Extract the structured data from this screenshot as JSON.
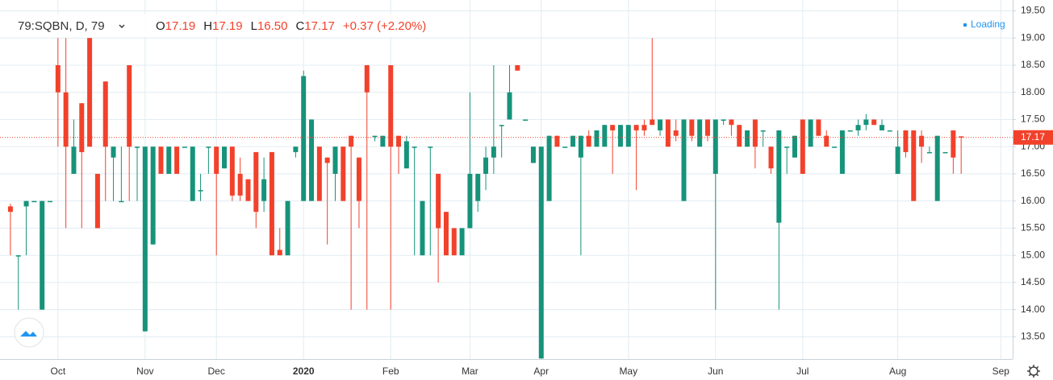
{
  "chart_data": {
    "type": "candlestick",
    "header": {
      "symbol": "79:SQBN, D, 79",
      "fields": [
        {
          "label": "O",
          "value": "17.19"
        },
        {
          "label": "H",
          "value": "17.19"
        },
        {
          "label": "L",
          "value": "16.50"
        },
        {
          "label": "C",
          "value": "17.17"
        }
      ],
      "change": "+0.37 (+2.20%)"
    },
    "status": "Loading",
    "price_label": "17.17",
    "up_color": "#16937a",
    "down_color": "#f2412b",
    "grid": true,
    "ylim": [
      13.09,
      19.7
    ],
    "yticks": [
      {
        "value": 13.5,
        "label": "13.50"
      },
      {
        "value": 14,
        "label": "14.00"
      },
      {
        "value": 14.5,
        "label": "14.50"
      },
      {
        "value": 15,
        "label": "15.00"
      },
      {
        "value": 15.5,
        "label": "15.50"
      },
      {
        "value": 16,
        "label": "16.00"
      },
      {
        "value": 16.5,
        "label": "16.50"
      },
      {
        "value": 17,
        "label": "17.00"
      },
      {
        "value": 17.5,
        "label": "17.50"
      },
      {
        "value": 18,
        "label": "18.00"
      },
      {
        "value": 18.5,
        "label": "18.50"
      },
      {
        "value": 19,
        "label": "19.00"
      },
      {
        "value": 19.5,
        "label": "19.50"
      }
    ],
    "categories": [
      null,
      null,
      null,
      null,
      null,
      null,
      "Oct",
      null,
      null,
      null,
      null,
      null,
      null,
      null,
      null,
      null,
      null,
      "Nov",
      null,
      null,
      null,
      null,
      null,
      null,
      null,
      null,
      "Dec",
      null,
      null,
      null,
      null,
      null,
      null,
      null,
      null,
      null,
      null,
      "2020",
      null,
      null,
      null,
      null,
      null,
      null,
      null,
      null,
      null,
      null,
      "Feb",
      null,
      null,
      null,
      null,
      null,
      null,
      null,
      null,
      null,
      "Mar",
      null,
      null,
      null,
      null,
      null,
      null,
      null,
      null,
      "Apr",
      null,
      null,
      null,
      null,
      null,
      null,
      null,
      null,
      null,
      null,
      "May",
      null,
      null,
      null,
      null,
      null,
      null,
      null,
      null,
      null,
      null,
      "Jun",
      null,
      null,
      null,
      null,
      null,
      null,
      null,
      null,
      null,
      null,
      "Jul",
      null,
      null,
      null,
      null,
      null,
      null,
      null,
      null,
      null,
      null,
      null,
      "Aug",
      null,
      null,
      null,
      null,
      null,
      null,
      null,
      null,
      null,
      null,
      null,
      null,
      "Sep",
      null
    ],
    "open": [
      15.9,
      15.0,
      15.9,
      16.0,
      14.0,
      16.0,
      18.5,
      18.0,
      16.5,
      17.8,
      19.0,
      16.5,
      18.2,
      16.8,
      16.0,
      18.5,
      17.0,
      13.6,
      15.2,
      17.0,
      16.5,
      17.0,
      17.0,
      16.0,
      16.2,
      17.0,
      17.0,
      16.6,
      17.0,
      16.5,
      16.4,
      16.9,
      16.0,
      16.9,
      15.1,
      15.0,
      16.9,
      16.0,
      16.0,
      17.0,
      16.8,
      16.5,
      17.0,
      17.2,
      16.8,
      18.5,
      17.2,
      17.0,
      18.5,
      17.2,
      16.6,
      17.0,
      15.0,
      17.0,
      16.5,
      15.8,
      15.5,
      15.0,
      15.5,
      16.0,
      16.5,
      16.8,
      17.4,
      17.5,
      18.5,
      17.5,
      16.7,
      13.1,
      16.0,
      17.2,
      17.0,
      17.0,
      16.8,
      17.2,
      17.0,
      17.0,
      17.4,
      17.0,
      17.0,
      17.4,
      17.4,
      17.5,
      17.3,
      17.5,
      17.3,
      16.0,
      17.5,
      17.0,
      17.5,
      16.5,
      17.5,
      17.5,
      17.4,
      17.0,
      17.5,
      17.3,
      17.0,
      15.6,
      17.0,
      16.8,
      17.5,
      17.0,
      17.5,
      17.2,
      17.0,
      16.5,
      17.3,
      17.3,
      17.4,
      17.5,
      17.3,
      17.3,
      16.5,
      17.3,
      17.3,
      17.2,
      16.9,
      16.0,
      16.9,
      17.3,
      17.19,
      null,
      null,
      null,
      null,
      null,
      null
    ],
    "high": [
      15.95,
      15.0,
      16.0,
      16.0,
      16.0,
      16.0,
      19.0,
      19.0,
      17.5,
      17.8,
      19.0,
      16.5,
      18.2,
      17.0,
      17.0,
      18.5,
      17.0,
      17.0,
      17.0,
      17.0,
      17.0,
      17.0,
      17.0,
      17.0,
      16.5,
      17.0,
      17.0,
      17.0,
      17.0,
      16.8,
      16.4,
      16.9,
      16.8,
      16.9,
      15.5,
      16.0,
      17.0,
      18.4,
      17.5,
      17.0,
      16.8,
      17.0,
      17.0,
      17.2,
      16.8,
      18.5,
      17.2,
      17.2,
      18.5,
      17.2,
      17.2,
      17.0,
      16.0,
      17.0,
      16.5,
      15.8,
      15.5,
      15.5,
      18.0,
      16.5,
      17.0,
      18.5,
      17.4,
      18.5,
      18.5,
      17.5,
      17.0,
      17.0,
      17.2,
      17.2,
      17.0,
      17.2,
      17.2,
      17.3,
      17.3,
      17.4,
      17.4,
      17.4,
      17.4,
      17.4,
      17.5,
      19.0,
      17.5,
      17.5,
      17.5,
      17.5,
      17.5,
      17.5,
      17.5,
      17.5,
      17.5,
      17.5,
      17.4,
      17.3,
      17.5,
      17.3,
      17.0,
      17.3,
      17.0,
      17.2,
      17.5,
      17.5,
      17.5,
      17.3,
      17.0,
      17.3,
      17.3,
      17.5,
      17.6,
      17.5,
      17.5,
      17.3,
      17.3,
      17.3,
      17.3,
      17.3,
      17.0,
      17.2,
      16.9,
      17.3,
      17.19,
      null,
      null,
      null,
      null,
      null,
      null
    ],
    "low": [
      15.0,
      14.0,
      15.0,
      16.0,
      14.0,
      16.0,
      17.0,
      15.5,
      16.5,
      15.5,
      17.0,
      15.5,
      16.0,
      16.0,
      16.0,
      16.0,
      16.0,
      13.6,
      15.2,
      16.5,
      16.5,
      16.5,
      17.0,
      16.0,
      16.0,
      16.5,
      15.0,
      16.6,
      16.0,
      16.0,
      16.0,
      15.5,
      15.8,
      15.0,
      15.0,
      15.0,
      16.8,
      16.0,
      16.0,
      16.0,
      15.2,
      16.0,
      16.0,
      14.0,
      15.5,
      14.0,
      17.1,
      17.0,
      14.0,
      16.5,
      16.6,
      15.0,
      15.0,
      15.0,
      14.5,
      15.0,
      15.0,
      15.0,
      15.5,
      15.8,
      16.2,
      16.5,
      16.8,
      17.5,
      18.4,
      17.5,
      16.7,
      13.1,
      16.0,
      17.0,
      17.0,
      17.0,
      15.0,
      17.0,
      17.0,
      17.0,
      16.5,
      17.0,
      17.0,
      16.2,
      17.2,
      17.4,
      17.2,
      17.0,
      17.1,
      16.0,
      17.1,
      17.0,
      17.1,
      14.0,
      17.4,
      17.2,
      17.0,
      17.0,
      16.6,
      17.0,
      16.5,
      14.0,
      16.5,
      16.8,
      16.5,
      17.0,
      17.2,
      17.0,
      17.0,
      16.5,
      17.3,
      17.2,
      17.3,
      17.4,
      17.3,
      17.3,
      16.5,
      16.8,
      16.0,
      16.7,
      16.9,
      16.0,
      16.9,
      16.5,
      16.5,
      null,
      null,
      null,
      null,
      null,
      null
    ],
    "close": [
      15.8,
      15.0,
      16.0,
      16.0,
      16.0,
      16.0,
      18.0,
      17.0,
      17.0,
      16.9,
      17.0,
      15.5,
      17.0,
      17.0,
      16.0,
      17.0,
      17.0,
      17.0,
      17.0,
      16.5,
      17.0,
      16.5,
      17.0,
      17.0,
      16.2,
      17.0,
      16.5,
      17.0,
      16.1,
      16.1,
      16.0,
      15.8,
      16.4,
      15.0,
      15.0,
      16.0,
      17.0,
      18.3,
      17.5,
      16.0,
      16.7,
      17.0,
      16.0,
      17.0,
      16.0,
      18.0,
      17.2,
      17.2,
      17.0,
      17.0,
      17.1,
      17.0,
      16.0,
      17.0,
      15.5,
      15.0,
      15.0,
      15.5,
      16.5,
      16.5,
      16.8,
      17.0,
      17.4,
      18.0,
      18.4,
      17.5,
      17.0,
      17.0,
      17.2,
      17.0,
      17.0,
      17.2,
      17.2,
      17.0,
      17.3,
      17.4,
      17.3,
      17.4,
      17.4,
      17.3,
      17.3,
      17.4,
      17.5,
      17.0,
      17.2,
      17.5,
      17.2,
      17.5,
      17.2,
      17.5,
      17.5,
      17.4,
      17.0,
      17.3,
      17.0,
      17.3,
      16.6,
      17.3,
      17.0,
      17.2,
      16.5,
      17.5,
      17.2,
      17.0,
      17.0,
      17.3,
      17.3,
      17.4,
      17.5,
      17.4,
      17.4,
      17.3,
      17.0,
      16.9,
      16.0,
      17.0,
      16.9,
      17.2,
      16.9,
      16.8,
      17.17,
      null,
      null,
      null,
      null,
      null,
      null
    ]
  }
}
